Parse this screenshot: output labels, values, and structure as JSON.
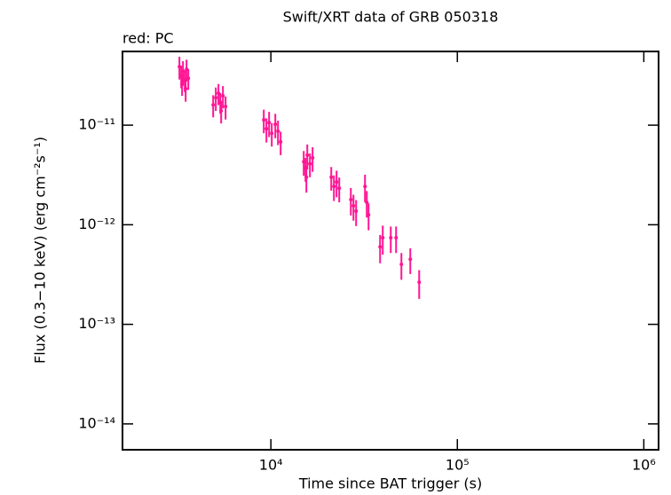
{
  "chart_data": {
    "type": "scatter",
    "title": "Swift/XRT data of GRB 050318",
    "subtitle": "red: PC",
    "x_label": "Time since BAT trigger (s)",
    "y_label": "Flux (0.3−10 keV) (erg cm⁻²s⁻¹)",
    "log_x": true,
    "log_y": true,
    "xlim": [
      1600,
      1200000
    ],
    "ylim": [
      5.5e-15,
      5.5e-11
    ],
    "xticks": [
      {
        "value": 10000,
        "label": "10⁴"
      },
      {
        "value": 100000,
        "label": "10⁵"
      },
      {
        "value": 1000000,
        "label": "10⁶"
      }
    ],
    "yticks": [
      {
        "value": 1e-14,
        "label": "10⁻¹⁴"
      },
      {
        "value": 1e-13,
        "label": "10⁻¹³"
      },
      {
        "value": 1e-12,
        "label": "10⁻¹²"
      },
      {
        "value": 1e-11,
        "label": "10⁻¹¹"
      }
    ],
    "series": [
      {
        "name": "PC",
        "color": "#ff1493",
        "x": [
          3232,
          3304,
          3378,
          3453,
          3530,
          3608,
          3491,
          3341,
          4904,
          5066,
          5236,
          5354,
          5531,
          5715,
          5412,
          9161,
          9467,
          9783,
          10110,
          10563,
          10917,
          11281,
          15005,
          15337,
          15677,
          16198,
          16739,
          15505,
          21076,
          21782,
          22509,
          23260,
          26840,
          27730,
          28650,
          31970,
          32680,
          33410,
          38520,
          39810,
          43950,
          46930,
          50120,
          55940,
          62420
        ],
        "values": [
          3.87e-11,
          3.15e-11,
          3.49e-11,
          2.85e-11,
          3.64e-11,
          2.96e-11,
          2.32e-11,
          2.57e-11,
          1.6e-11,
          1.89e-11,
          2.09e-11,
          1.7e-11,
          1.97e-11,
          1.54e-11,
          1.39e-11,
          1.13e-11,
          9.2e-12,
          1.06e-11,
          8.3e-12,
          1.02e-11,
          8.7e-12,
          6.8e-12,
          4.3e-12,
          3.7e-12,
          5e-12,
          4.1e-12,
          4.7e-12,
          3e-12,
          3e-12,
          2.43e-12,
          2.69e-12,
          2.33e-12,
          1.79e-12,
          1.55e-12,
          1.37e-12,
          2.43e-12,
          1.68e-12,
          1.26e-12,
          6e-13,
          7.4e-13,
          7.4e-13,
          7.4e-13,
          4e-13,
          4.5e-13,
          2.65e-13
        ],
        "errors": [
          1e-11,
          8e-12,
          9e-12,
          7e-12,
          9e-12,
          7e-12,
          6e-12,
          6e-12,
          4e-12,
          5e-12,
          5e-12,
          4e-12,
          5e-12,
          4e-12,
          3.5e-12,
          3e-12,
          2.5e-12,
          3e-12,
          2.2e-12,
          2.8e-12,
          2.4e-12,
          1.8e-12,
          1.2e-12,
          1e-12,
          1.4e-12,
          1.1e-12,
          1.3e-12,
          9e-13,
          8e-13,
          7e-13,
          8e-13,
          6.5e-13,
          5.5e-13,
          4.5e-13,
          4e-13,
          7.5e-13,
          5e-13,
          3.8e-13,
          1.9e-13,
          2.4e-13,
          2.2e-13,
          2.2e-13,
          1.2e-13,
          1.3e-13,
          8.5e-14
        ]
      }
    ]
  }
}
